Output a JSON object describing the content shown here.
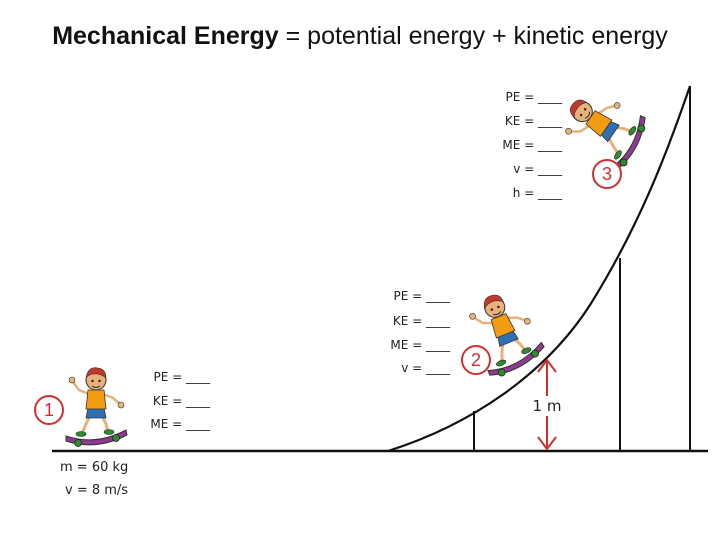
{
  "title": {
    "bold_part": "Mechanical Energy",
    "rest": " = potential energy + kinetic energy"
  },
  "labels": {
    "pe": "PE = ____",
    "ke": "KE = ____",
    "me": "ME = ____",
    "v": "v = ____",
    "h": "h = ____"
  },
  "positions": [
    {
      "number": "1"
    },
    {
      "number": "2"
    },
    {
      "number": "3"
    }
  ],
  "given": {
    "mass": "m = 60 kg",
    "velocity": "v = 8 m/s"
  },
  "measurement": "1 m",
  "colors": {
    "number_circle": "#d32f2f",
    "shirt": "#f39c12",
    "hair": "#c0392b",
    "board": "#8e3a8e",
    "wheels": "#2e8b2e"
  }
}
